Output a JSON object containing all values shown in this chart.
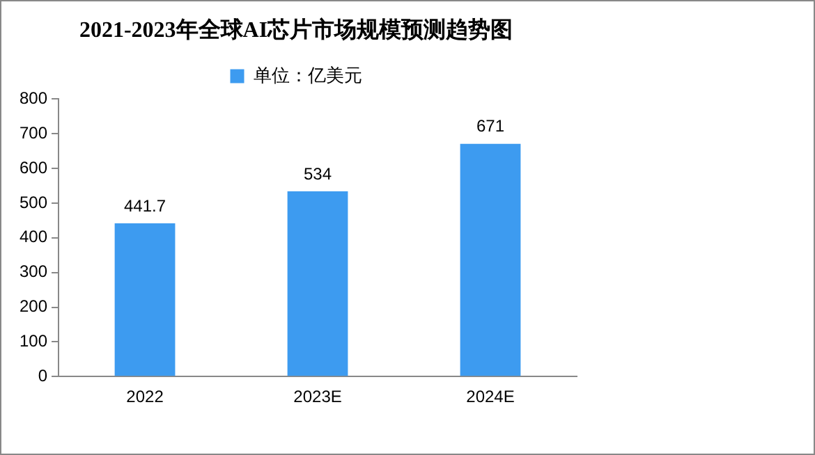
{
  "chart_data": {
    "type": "bar",
    "title": "2021-2023年全球AI芯片市场规模预测趋势图",
    "categories": [
      "2022",
      "2023E",
      "2024E"
    ],
    "series": [
      {
        "name": "单位：亿美元",
        "color": "#3d9bf0",
        "values": [
          441.7,
          534,
          671
        ]
      }
    ],
    "ylim": [
      0,
      800
    ],
    "yticks": [
      0,
      100,
      200,
      300,
      400,
      500,
      600,
      700,
      800
    ],
    "grid": false,
    "legend": "top",
    "data_labels": true
  }
}
